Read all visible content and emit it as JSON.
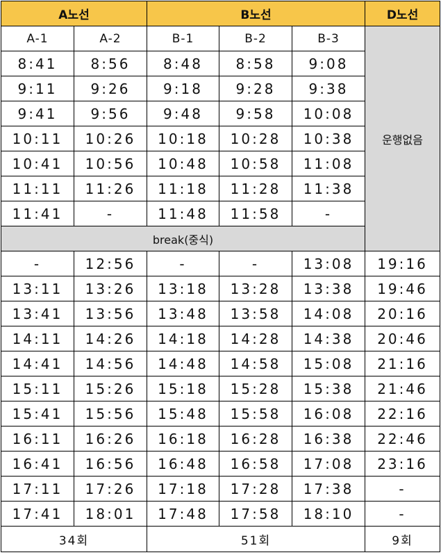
{
  "routes": [
    {
      "name": "A노선",
      "span": 2
    },
    {
      "name": "B노선",
      "span": 3
    },
    {
      "name": "D노선",
      "span": 1
    }
  ],
  "sub_routes": [
    "A-1",
    "A-2",
    "B-1",
    "B-2",
    "B-3"
  ],
  "not_operating_label": "운행없음",
  "morning_rows": [
    [
      "8:41",
      "8:56",
      "8:48",
      "8:58",
      "9:08"
    ],
    [
      "9:11",
      "9:26",
      "9:18",
      "9:28",
      "9:38"
    ],
    [
      "9:41",
      "9:56",
      "9:48",
      "9:58",
      "10:08"
    ],
    [
      "10:11",
      "10:26",
      "10:18",
      "10:28",
      "10:38"
    ],
    [
      "10:41",
      "10:56",
      "10:48",
      "10:58",
      "11:08"
    ],
    [
      "11:11",
      "11:26",
      "11:18",
      "11:28",
      "11:38"
    ],
    [
      "11:41",
      "-",
      "11:48",
      "11:58",
      "-"
    ]
  ],
  "break_label": "break(중식)",
  "afternoon_rows": [
    [
      "-",
      "12:56",
      "-",
      "-",
      "13:08",
      "19:16"
    ],
    [
      "13:11",
      "13:26",
      "13:18",
      "13:28",
      "13:38",
      "19:46"
    ],
    [
      "13:41",
      "13:56",
      "13:48",
      "13:58",
      "14:08",
      "20:16"
    ],
    [
      "14:11",
      "14:26",
      "14:18",
      "14:28",
      "14:38",
      "20:46"
    ],
    [
      "14:41",
      "14:56",
      "14:48",
      "14:58",
      "15:08",
      "21:16"
    ],
    [
      "15:11",
      "15:26",
      "15:18",
      "15:28",
      "15:38",
      "21:46"
    ],
    [
      "15:41",
      "15:56",
      "15:48",
      "15:58",
      "16:08",
      "22:16"
    ],
    [
      "16:11",
      "16:26",
      "16:18",
      "16:28",
      "16:38",
      "22:46"
    ],
    [
      "16:41",
      "16:56",
      "16:48",
      "16:58",
      "17:08",
      "23:16"
    ],
    [
      "17:11",
      "17:26",
      "17:18",
      "17:28",
      "17:38",
      "-"
    ],
    [
      "17:41",
      "18:01",
      "17:48",
      "17:58",
      "18:10",
      "-"
    ]
  ],
  "totals": [
    {
      "label": "34회",
      "span": 2
    },
    {
      "label": "51회",
      "span": 3
    },
    {
      "label": "9회",
      "span": 1
    }
  ],
  "colors": {
    "header_bg": "#f7c64a",
    "gray_bg": "#d9d9d9",
    "border": "#000000"
  }
}
